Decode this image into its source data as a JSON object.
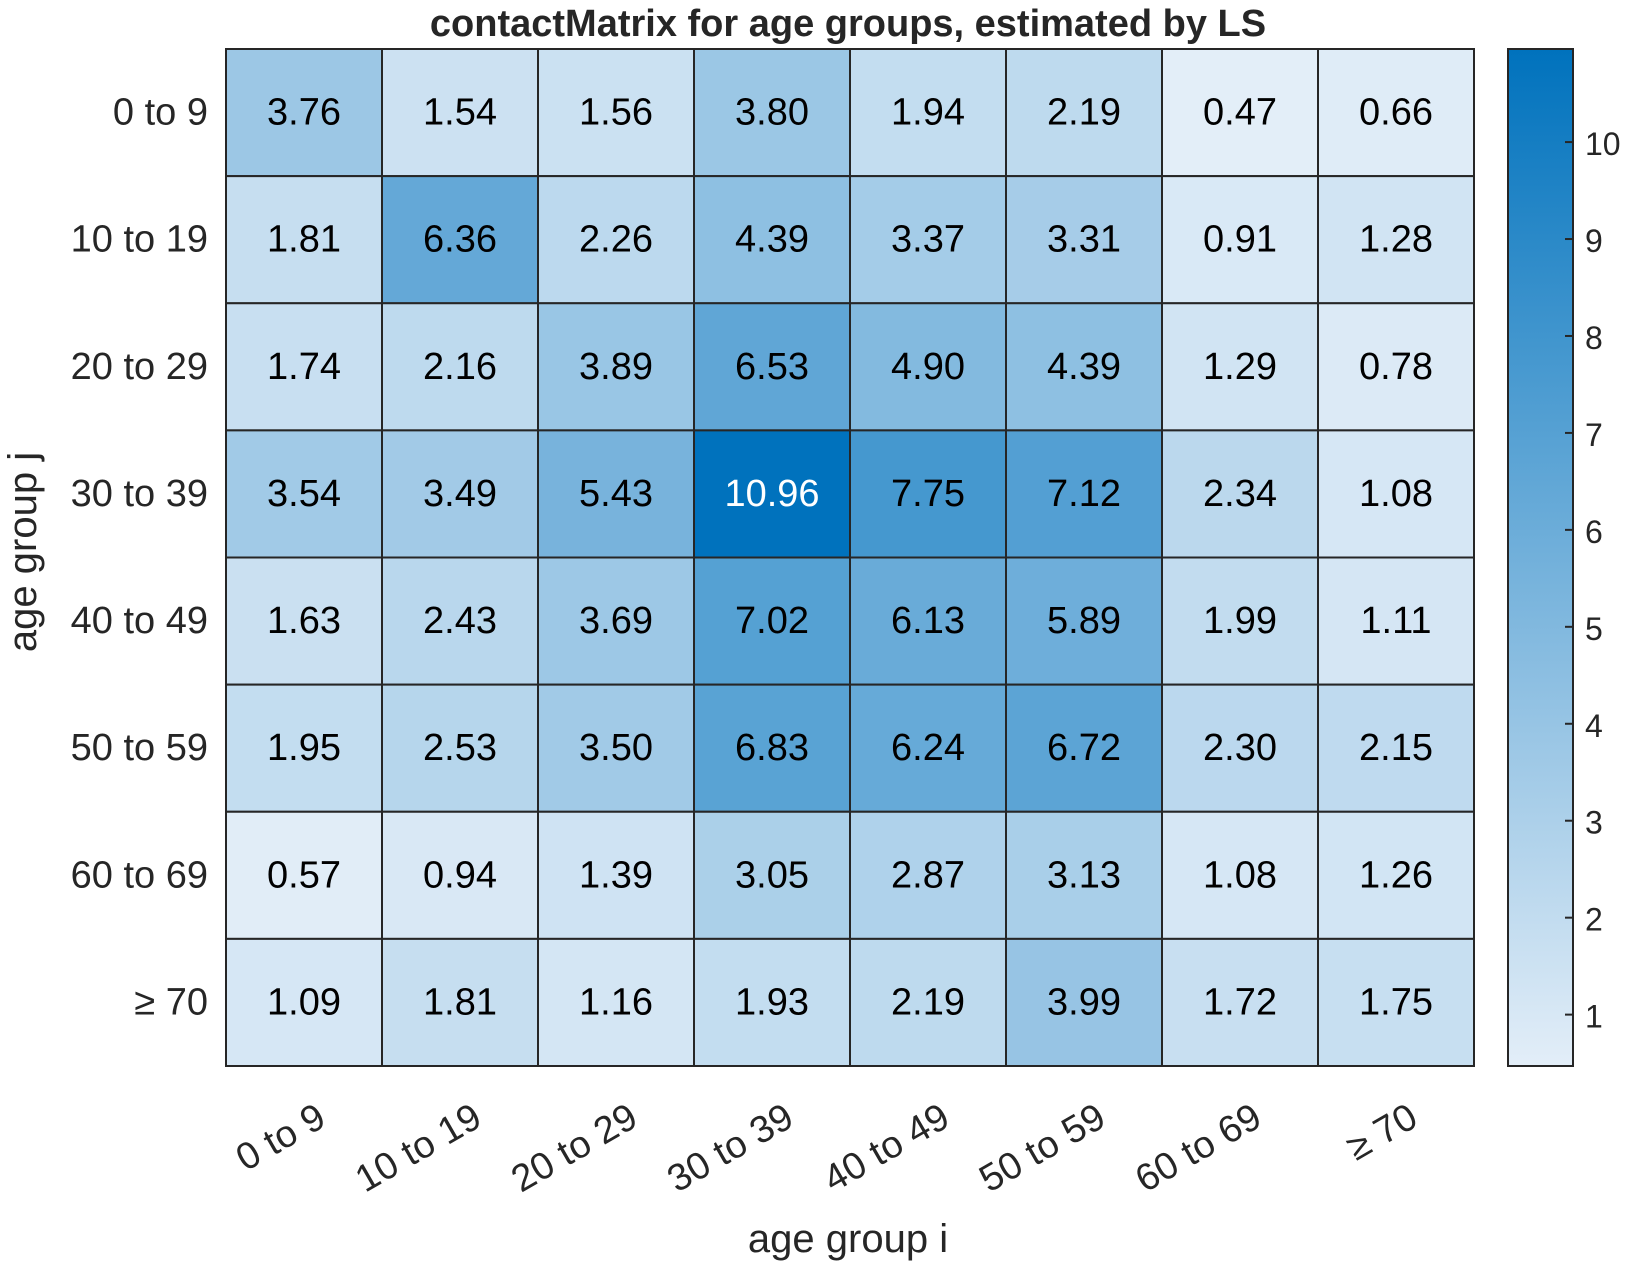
{
  "chart_data": {
    "type": "heatmap",
    "title": "contactMatrix for age groups, estimated by LS",
    "xlabel": "age group i",
    "ylabel": "age group j",
    "x_categories": [
      "0 to 9",
      "10 to 19",
      "20 to 29",
      "30 to 39",
      "40 to 49",
      "50 to 59",
      "60 to 69",
      "≥ 70"
    ],
    "y_categories": [
      "0 to 9",
      "10 to 19",
      "20 to 29",
      "30 to 39",
      "40 to 49",
      "50 to 59",
      "60 to 69",
      "≥ 70"
    ],
    "values": [
      [
        3.76,
        1.54,
        1.56,
        3.8,
        1.94,
        2.19,
        0.47,
        0.66
      ],
      [
        1.81,
        6.36,
        2.26,
        4.39,
        3.37,
        3.31,
        0.91,
        1.28
      ],
      [
        1.74,
        2.16,
        3.89,
        6.53,
        4.9,
        4.39,
        1.29,
        0.78
      ],
      [
        3.54,
        3.49,
        5.43,
        10.96,
        7.75,
        7.12,
        2.34,
        1.08
      ],
      [
        1.63,
        2.43,
        3.69,
        7.02,
        6.13,
        5.89,
        1.99,
        1.11
      ],
      [
        1.95,
        2.53,
        3.5,
        6.83,
        6.24,
        6.72,
        2.3,
        2.15
      ],
      [
        0.57,
        0.94,
        1.39,
        3.05,
        2.87,
        3.13,
        1.08,
        1.26
      ],
      [
        1.09,
        1.81,
        1.16,
        1.93,
        2.19,
        3.99,
        1.72,
        1.75
      ]
    ],
    "colorbar": {
      "ticks": [
        1,
        2,
        3,
        4,
        5,
        6,
        7,
        8,
        9,
        10
      ],
      "range": [
        0.47,
        10.96
      ],
      "low_color": "#e3eef8",
      "high_color": "#0072bd",
      "placement": "right"
    },
    "text_color_dark": "#000000",
    "text_color_light": "#ffffff",
    "grid": true,
    "legend": "colorbar-right"
  }
}
